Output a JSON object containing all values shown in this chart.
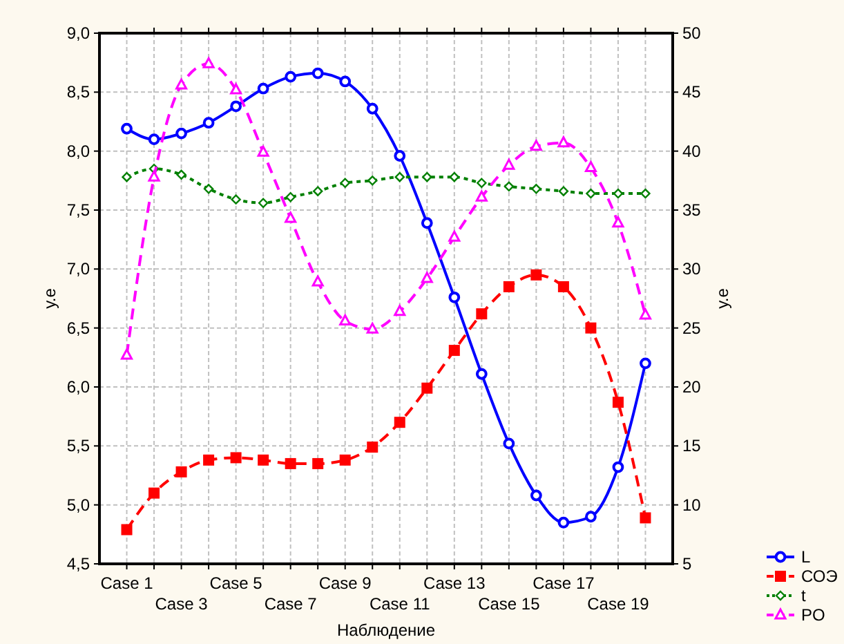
{
  "chart_data": {
    "type": "line",
    "xlabel": "Наблюдение",
    "ylabel": "у.е",
    "y2label": "у.е",
    "categories": [
      "Case 1",
      null,
      "Case 3",
      null,
      "Case 5",
      null,
      "Case 7",
      null,
      "Case 9",
      null,
      "Case 11",
      null,
      "Case 13",
      null,
      "Case 15",
      null,
      "Case 17",
      null,
      "Case 19",
      null
    ],
    "ylim": [
      4.5,
      9
    ],
    "yticks": [
      {
        "value": 4.5,
        "label": "4,5"
      },
      {
        "value": 5,
        "label": "5,0"
      },
      {
        "value": 5.5,
        "label": "5,5"
      },
      {
        "value": 6,
        "label": "6,0"
      },
      {
        "value": 6.5,
        "label": "6,5"
      },
      {
        "value": 7,
        "label": "7,0"
      },
      {
        "value": 7.5,
        "label": "7,5"
      },
      {
        "value": 8,
        "label": "8,0"
      },
      {
        "value": 8.5,
        "label": "8,5"
      },
      {
        "value": 9,
        "label": "9,0"
      }
    ],
    "y2lim": [
      5,
      50
    ],
    "y2ticks": [
      5,
      10,
      15,
      20,
      25,
      30,
      35,
      40,
      45,
      50
    ],
    "grid": true,
    "legend": "bottom right",
    "series": [
      {
        "name": "L",
        "color": "#0000ff",
        "marker": "circle",
        "line_style": "solid",
        "values": [
          8.19,
          8.1,
          8.15,
          8.24,
          8.38,
          8.53,
          8.63,
          8.66,
          8.59,
          8.36,
          7.96,
          7.39,
          6.76,
          6.11,
          5.52,
          5.08,
          4.85,
          4.9,
          5.32,
          6.2
        ]
      },
      {
        "name": "СОЭ",
        "color": "#ff0000",
        "marker": "square",
        "line_style": "dashed",
        "axis": "y2",
        "values": [
          7.9,
          11,
          12.8,
          13.8,
          14,
          13.8,
          13.5,
          13.5,
          13.8,
          14.9,
          17,
          19.9,
          23.1,
          26.2,
          28.5,
          29.5,
          28.5,
          25,
          18.7,
          8.9
        ]
      },
      {
        "name": "t",
        "color": "#008000",
        "marker": "diamond",
        "line_style": "dotted",
        "values": [
          7.78,
          7.85,
          7.8,
          7.68,
          7.59,
          7.56,
          7.61,
          7.66,
          7.73,
          7.75,
          7.78,
          7.78,
          7.78,
          7.73,
          7.7,
          7.68,
          7.66,
          7.64,
          7.64,
          7.64
        ]
      },
      {
        "name": "PO",
        "color": "#ff00ff",
        "marker": "triangle",
        "line_style": "dashed",
        "axis": "y2",
        "values": [
          22.7,
          37.8,
          45.6,
          47.4,
          45.2,
          39.9,
          34.3,
          28.9,
          25.6,
          24.9,
          26.4,
          29.2,
          32.7,
          36.1,
          38.8,
          40.4,
          40.7,
          38.6,
          33.9,
          26.1
        ]
      }
    ]
  }
}
